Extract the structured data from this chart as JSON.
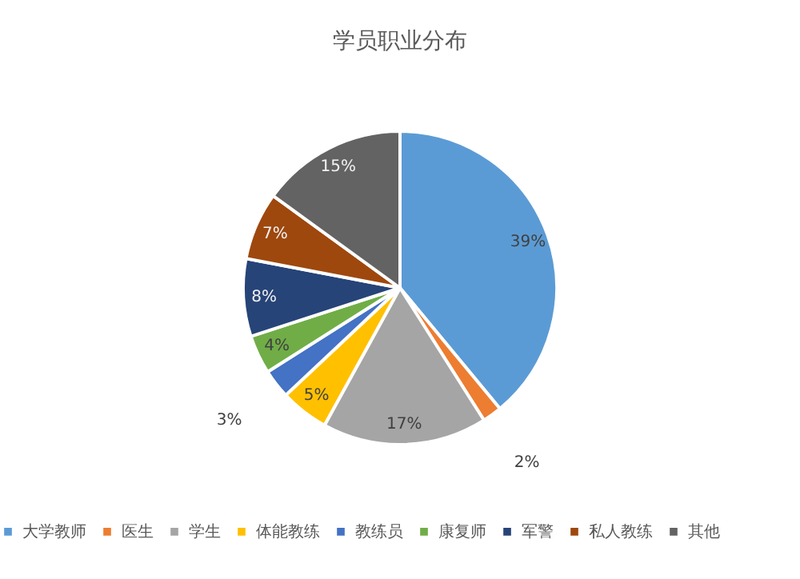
{
  "chart_data": {
    "type": "pie",
    "title": "学员职业分布",
    "categories": [
      "大学教师",
      "医生",
      "学生",
      "体能教练",
      "教练员",
      "康复师",
      "军警",
      "私人教练",
      "其他"
    ],
    "values": [
      39,
      2,
      17,
      5,
      3,
      4,
      8,
      7,
      15
    ],
    "value_labels": [
      "39%",
      "2%",
      "17%",
      "5%",
      "3%",
      "4%",
      "8%",
      "7%",
      "15%"
    ],
    "colors": [
      "#5b9bd5",
      "#ed7d31",
      "#a5a5a5",
      "#ffc000",
      "#4472c4",
      "#70ad47",
      "#264478",
      "#9e480e",
      "#636363"
    ],
    "legend": "bottom"
  }
}
